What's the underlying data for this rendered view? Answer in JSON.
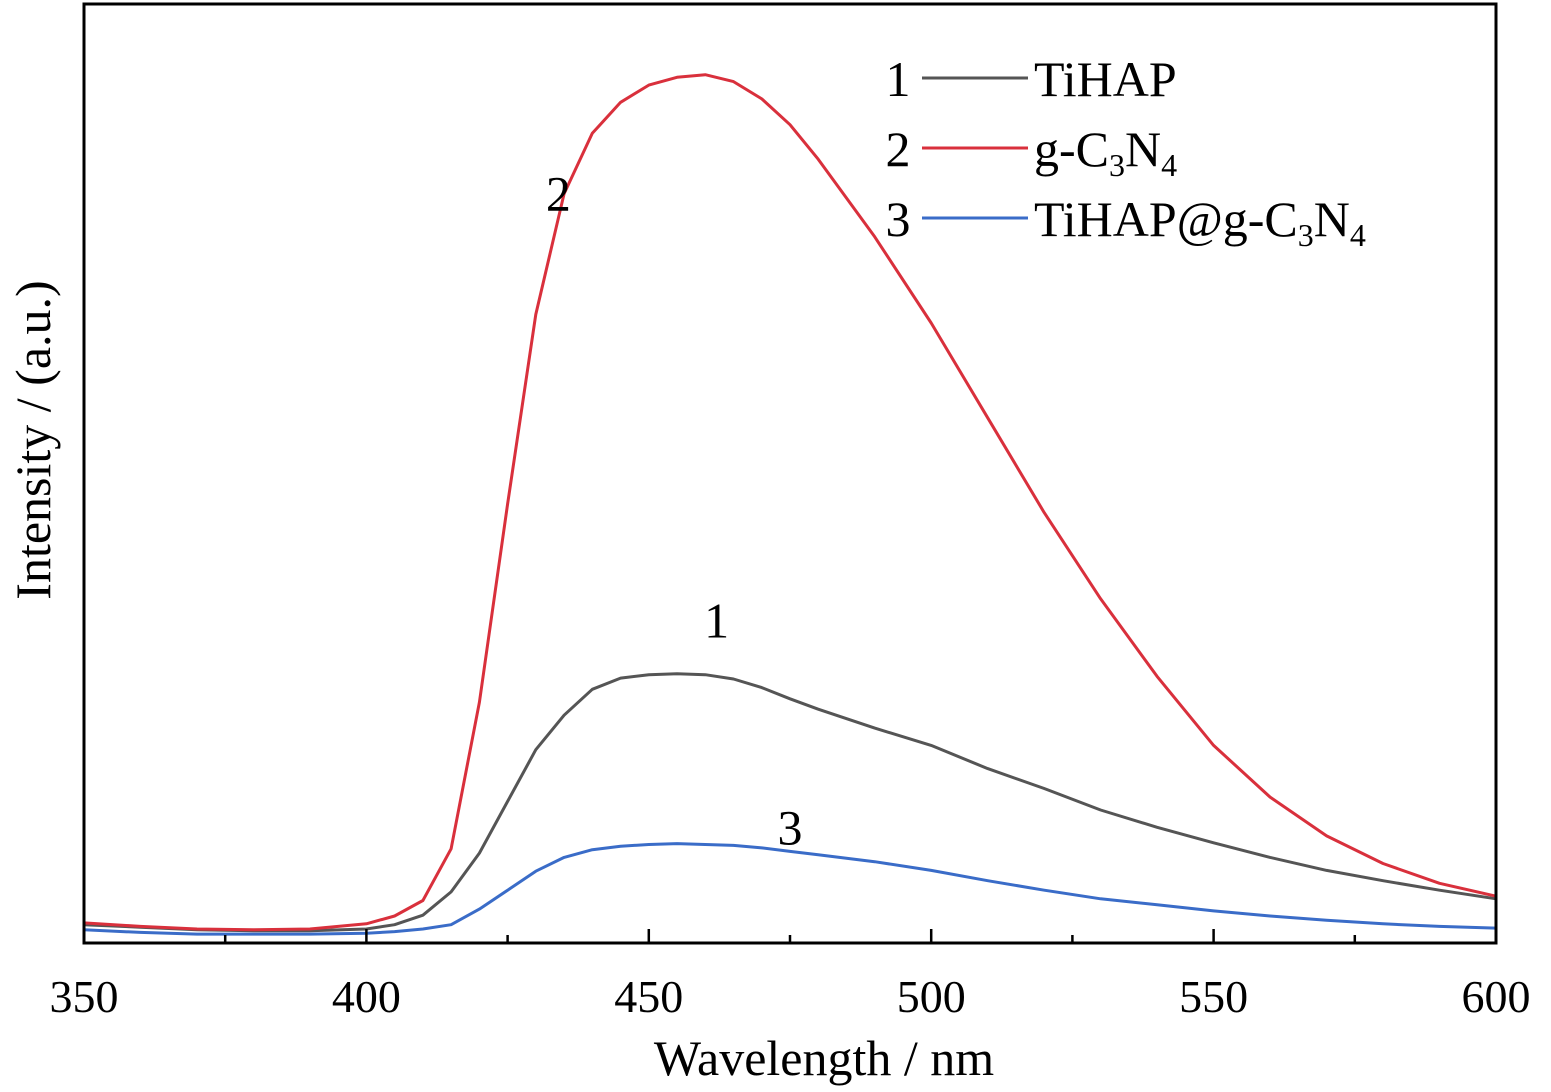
{
  "chart_data": {
    "type": "line",
    "xlabel": "Wavelength / nm",
    "ylabel": "Intensity / (a.u.)",
    "xlim": [
      350,
      600
    ],
    "ylim": [
      0,
      1
    ],
    "x_ticks": [
      "350",
      "400",
      "450",
      "500",
      "550",
      "600"
    ],
    "y_ticks_shown": false,
    "grid": false,
    "legend_position": "top-right",
    "series": [
      {
        "number": "1",
        "name": "TiHAP",
        "label_parts": [
          {
            "t": "TiHAP"
          }
        ],
        "color": "#555555",
        "x": [
          350,
          360,
          370,
          380,
          390,
          400,
          405,
          410,
          415,
          420,
          425,
          430,
          435,
          440,
          445,
          450,
          455,
          460,
          465,
          470,
          475,
          480,
          490,
          500,
          510,
          520,
          530,
          540,
          550,
          560,
          570,
          580,
          590,
          600
        ],
        "y": [
          0.012,
          0.009,
          0.006,
          0.005,
          0.005,
          0.007,
          0.012,
          0.023,
          0.05,
          0.095,
          0.155,
          0.215,
          0.255,
          0.285,
          0.298,
          0.302,
          0.303,
          0.302,
          0.297,
          0.287,
          0.274,
          0.262,
          0.24,
          0.22,
          0.193,
          0.17,
          0.145,
          0.125,
          0.107,
          0.09,
          0.075,
          0.063,
          0.052,
          0.042
        ]
      },
      {
        "number": "2",
        "name": "g-C3N4",
        "label_parts": [
          {
            "t": "g-C"
          },
          {
            "t": "3",
            "sub": true
          },
          {
            "t": "N"
          },
          {
            "t": "4",
            "sub": true
          }
        ],
        "color": "#d9303c",
        "x": [
          350,
          360,
          370,
          380,
          390,
          400,
          405,
          410,
          415,
          420,
          425,
          430,
          435,
          440,
          445,
          450,
          455,
          460,
          465,
          470,
          475,
          480,
          490,
          500,
          510,
          520,
          530,
          540,
          550,
          560,
          570,
          580,
          590,
          600
        ],
        "y": [
          0.014,
          0.01,
          0.007,
          0.006,
          0.007,
          0.013,
          0.022,
          0.04,
          0.1,
          0.27,
          0.5,
          0.72,
          0.86,
          0.93,
          0.966,
          0.986,
          0.995,
          0.998,
          0.99,
          0.97,
          0.94,
          0.9,
          0.81,
          0.71,
          0.6,
          0.49,
          0.39,
          0.3,
          0.22,
          0.16,
          0.115,
          0.083,
          0.06,
          0.045
        ]
      },
      {
        "number": "3",
        "name": "TiHAP@g-C3N4",
        "label_parts": [
          {
            "t": "TiHAP@g-C"
          },
          {
            "t": "3",
            "sub": true
          },
          {
            "t": "N"
          },
          {
            "t": "4",
            "sub": true
          }
        ],
        "color": "#3a6cc8",
        "x": [
          350,
          360,
          370,
          380,
          390,
          400,
          405,
          410,
          415,
          420,
          425,
          430,
          435,
          440,
          445,
          450,
          455,
          460,
          465,
          470,
          475,
          480,
          490,
          500,
          510,
          520,
          530,
          540,
          550,
          560,
          570,
          580,
          590,
          600
        ],
        "y": [
          0.006,
          0.003,
          0.001,
          0.001,
          0.001,
          0.002,
          0.004,
          0.007,
          0.012,
          0.03,
          0.052,
          0.074,
          0.09,
          0.099,
          0.103,
          0.105,
          0.106,
          0.105,
          0.104,
          0.101,
          0.097,
          0.093,
          0.085,
          0.075,
          0.063,
          0.052,
          0.042,
          0.035,
          0.028,
          0.022,
          0.017,
          0.013,
          0.01,
          0.008
        ]
      }
    ],
    "curve_labels": [
      {
        "text": "2",
        "x": 434,
        "y": 0.86
      },
      {
        "text": "1",
        "x": 462,
        "y": 0.365
      },
      {
        "text": "3",
        "x": 475,
        "y": 0.125
      }
    ]
  }
}
